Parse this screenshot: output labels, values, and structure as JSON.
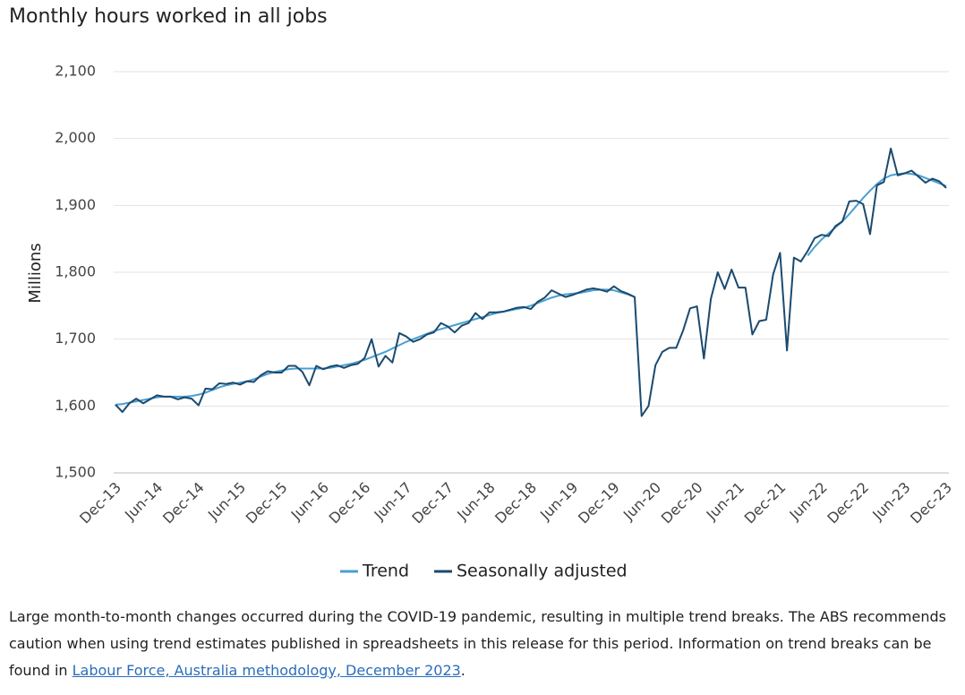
{
  "chart_data": {
    "type": "line",
    "title": "Monthly hours worked in all jobs",
    "y_label": "Millions",
    "categories": [
      "Dec-13",
      null,
      null,
      null,
      null,
      null,
      "Jun-14",
      null,
      null,
      null,
      null,
      null,
      "Dec-14",
      null,
      null,
      null,
      null,
      null,
      "Jun-15",
      null,
      null,
      null,
      null,
      null,
      "Dec-15",
      null,
      null,
      null,
      null,
      null,
      "Jun-16",
      null,
      null,
      null,
      null,
      null,
      "Dec-16",
      null,
      null,
      null,
      null,
      null,
      "Jun-17",
      null,
      null,
      null,
      null,
      null,
      "Dec-17",
      null,
      null,
      null,
      null,
      null,
      "Jun-18",
      null,
      null,
      null,
      null,
      null,
      "Dec-18",
      null,
      null,
      null,
      null,
      null,
      "Jun-19",
      null,
      null,
      null,
      null,
      null,
      "Dec-19",
      null,
      null,
      null,
      null,
      null,
      "Jun-20",
      null,
      null,
      null,
      null,
      null,
      "Dec-20",
      null,
      null,
      null,
      null,
      null,
      "Jun-21",
      null,
      null,
      null,
      null,
      null,
      "Dec-21",
      null,
      null,
      null,
      null,
      null,
      "Jun-22",
      null,
      null,
      null,
      null,
      null,
      "Dec-22",
      null,
      null,
      null,
      null,
      null,
      "Jun-23",
      null,
      null,
      null,
      null,
      null,
      "Dec-23"
    ],
    "series": [
      {
        "name": "Trend",
        "color": "#4a9fd1",
        "values": [
          1602,
          1603,
          1605,
          1607,
          1609,
          1611,
          1613,
          1614,
          1614,
          1614,
          1614,
          1615,
          1617,
          1620,
          1624,
          1628,
          1631,
          1633,
          1635,
          1637,
          1640,
          1644,
          1648,
          1651,
          1653,
          1655,
          1656,
          1656,
          1656,
          1656,
          1656,
          1657,
          1659,
          1661,
          1663,
          1666,
          1669,
          1673,
          1677,
          1681,
          1686,
          1691,
          1696,
          1700,
          1704,
          1708,
          1712,
          1715,
          1718,
          1721,
          1724,
          1727,
          1730,
          1733,
          1736,
          1739,
          1741,
          1743,
          1745,
          1747,
          1750,
          1754,
          1758,
          1762,
          1765,
          1767,
          1768,
          1769,
          1771,
          1773,
          1774,
          1774,
          1773,
          1770,
          1767,
          1763,
          null,
          null,
          null,
          null,
          null,
          null,
          null,
          null,
          null,
          null,
          null,
          null,
          null,
          null,
          null,
          null,
          null,
          null,
          null,
          null,
          null,
          null,
          null,
          null,
          1825,
          1838,
          1849,
          1858,
          1867,
          1876,
          1887,
          1899,
          1911,
          1922,
          1932,
          1940,
          1945,
          1947,
          1948,
          1947,
          1945,
          1941,
          1937,
          1933,
          1929
        ]
      },
      {
        "name": "Seasonally adjusted",
        "color": "#1b4a6e",
        "values": [
          1602,
          1591,
          1604,
          1611,
          1604,
          1610,
          1616,
          1614,
          1614,
          1610,
          1613,
          1611,
          1601,
          1626,
          1625,
          1634,
          1633,
          1635,
          1632,
          1637,
          1636,
          1646,
          1652,
          1650,
          1650,
          1660,
          1660,
          1651,
          1631,
          1660,
          1655,
          1659,
          1661,
          1657,
          1661,
          1663,
          1672,
          1700,
          1659,
          1675,
          1665,
          1709,
          1704,
          1696,
          1700,
          1707,
          1710,
          1724,
          1719,
          1710,
          1720,
          1724,
          1739,
          1730,
          1740,
          1740,
          1741,
          1744,
          1747,
          1748,
          1745,
          1756,
          1762,
          1773,
          1768,
          1763,
          1766,
          1770,
          1774,
          1776,
          1774,
          1771,
          1779,
          1772,
          1768,
          1763,
          1585,
          1600,
          1661,
          1681,
          1687,
          1687,
          1713,
          1746,
          1749,
          1671,
          1760,
          1800,
          1775,
          1804,
          1777,
          1777,
          1707,
          1727,
          1729,
          1797,
          1829,
          1683,
          1822,
          1816,
          1832,
          1851,
          1856,
          1854,
          1869,
          1876,
          1906,
          1907,
          1902,
          1857,
          1930,
          1935,
          1985,
          1945,
          1948,
          1952,
          1943,
          1934,
          1940,
          1936,
          1926
        ]
      }
    ],
    "ylim": [
      1500,
      2100
    ],
    "yticks": [
      {
        "value": 1500,
        "label": "1,500"
      },
      {
        "value": 1600,
        "label": "1,600"
      },
      {
        "value": 1700,
        "label": "1,700"
      },
      {
        "value": 1800,
        "label": "1,800"
      },
      {
        "value": 1900,
        "label": "1,900"
      },
      {
        "value": 2000,
        "label": "2,000"
      },
      {
        "value": 2100,
        "label": "2,100"
      }
    ],
    "grid": true,
    "legend": "bottom"
  },
  "note": {
    "text": "Large month-to-month changes occurred during the COVID-19 pandemic, resulting in multiple trend breaks. The ABS recommends caution when using trend estimates published in spreadsheets in this release for this period. Information on trend breaks can be found in ",
    "link": "Labour Force, Australia methodology, December 2023",
    "end": "."
  }
}
